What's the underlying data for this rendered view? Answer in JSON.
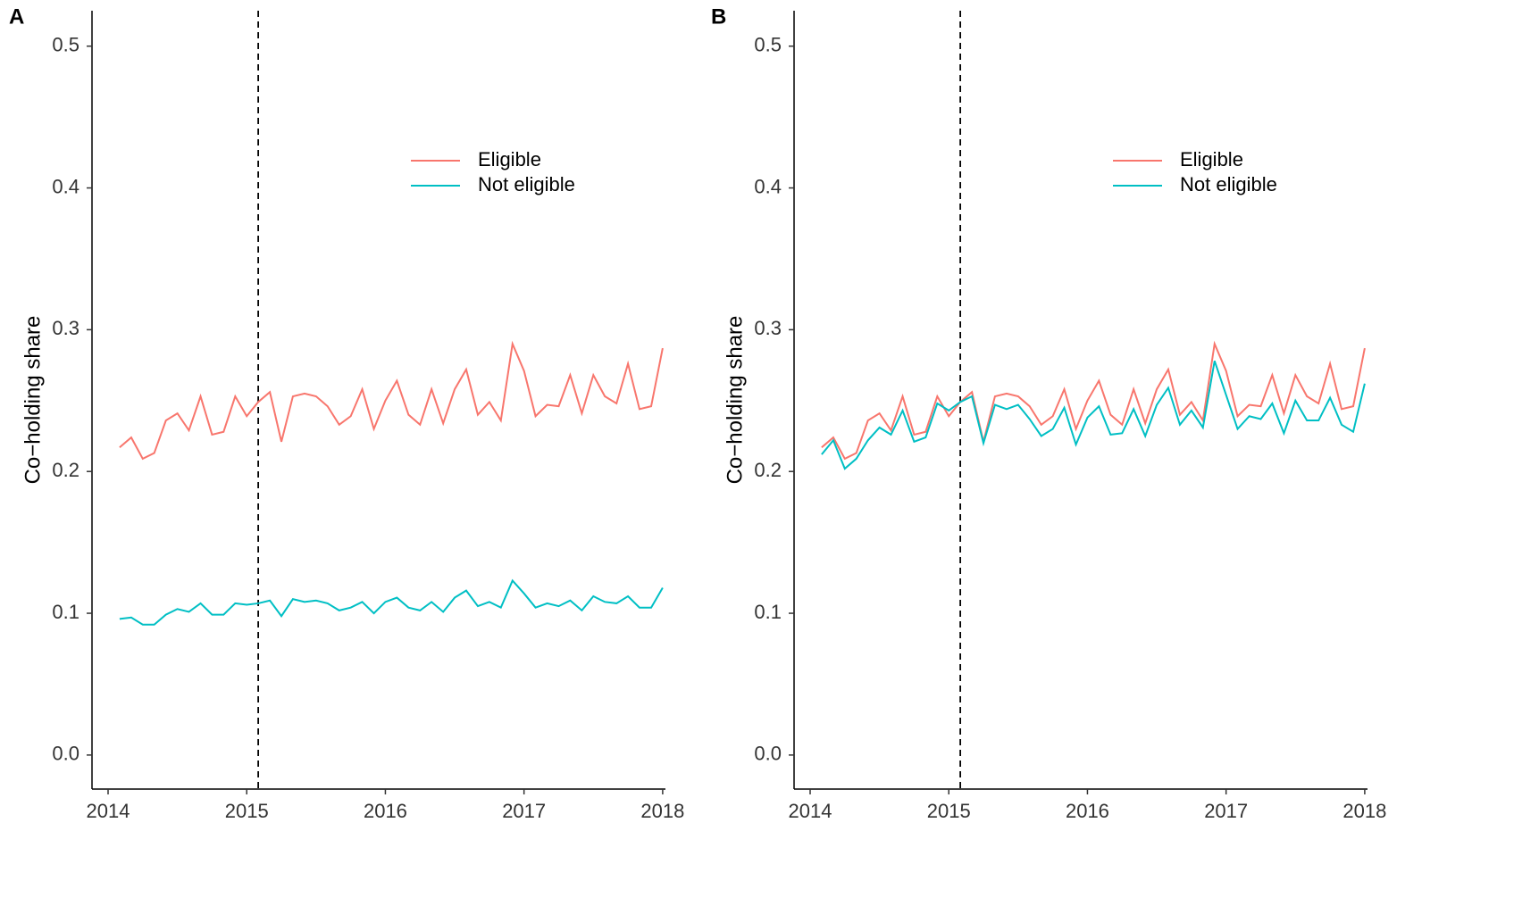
{
  "chart_data": [
    {
      "type": "line",
      "panel_label": "A",
      "y_label": "Co−holding share",
      "x": [
        2014.083,
        2014.167,
        2014.25,
        2014.333,
        2014.417,
        2014.5,
        2014.583,
        2014.667,
        2014.75,
        2014.833,
        2014.917,
        2015.0,
        2015.083,
        2015.167,
        2015.25,
        2015.333,
        2015.417,
        2015.5,
        2015.583,
        2015.667,
        2015.75,
        2015.833,
        2015.917,
        2016.0,
        2016.083,
        2016.167,
        2016.25,
        2016.333,
        2016.417,
        2016.5,
        2016.583,
        2016.667,
        2016.75,
        2016.833,
        2016.917,
        2017.0,
        2017.083,
        2017.167,
        2017.25,
        2017.333,
        2017.417,
        2017.5,
        2017.583,
        2017.667,
        2017.75,
        2017.833,
        2017.917,
        2018.0
      ],
      "series": [
        {
          "name": "Eligible",
          "color": "#F8766D",
          "values": [
            0.217,
            0.224,
            0.209,
            0.213,
            0.236,
            0.241,
            0.229,
            0.253,
            0.226,
            0.228,
            0.253,
            0.239,
            0.249,
            0.256,
            0.221,
            0.253,
            0.255,
            0.253,
            0.246,
            0.233,
            0.239,
            0.258,
            0.23,
            0.25,
            0.264,
            0.24,
            0.233,
            0.258,
            0.234,
            0.258,
            0.272,
            0.24,
            0.249,
            0.236,
            0.29,
            0.271,
            0.239,
            0.247,
            0.246,
            0.268,
            0.241,
            0.268,
            0.253,
            0.248,
            0.276,
            0.244,
            0.246,
            0.287
          ]
        },
        {
          "name": "Not eligible",
          "color": "#00BFC4",
          "values": [
            0.096,
            0.097,
            0.092,
            0.092,
            0.099,
            0.103,
            0.101,
            0.107,
            0.099,
            0.099,
            0.107,
            0.106,
            0.107,
            0.109,
            0.098,
            0.11,
            0.108,
            0.109,
            0.107,
            0.102,
            0.104,
            0.108,
            0.1,
            0.108,
            0.111,
            0.104,
            0.102,
            0.108,
            0.101,
            0.111,
            0.116,
            0.105,
            0.108,
            0.104,
            0.123,
            0.114,
            0.104,
            0.107,
            0.105,
            0.109,
            0.102,
            0.112,
            0.108,
            0.107,
            0.112,
            0.104,
            0.104,
            0.118
          ]
        }
      ],
      "xlim": [
        2013.884,
        2018.02
      ],
      "xticks": [
        2014,
        2015,
        2016,
        2017,
        2018
      ],
      "ylim": [
        -0.024,
        0.525
      ],
      "yticks": [
        {
          "value": 0,
          "label": "0.0"
        },
        0.1,
        0.2,
        0.3,
        0.4,
        0.5
      ],
      "vline": 2015.083,
      "legend": "top-right"
    },
    {
      "type": "line",
      "panel_label": "B",
      "y_label": "Co−holding share",
      "x": [
        2014.083,
        2014.167,
        2014.25,
        2014.333,
        2014.417,
        2014.5,
        2014.583,
        2014.667,
        2014.75,
        2014.833,
        2014.917,
        2015.0,
        2015.083,
        2015.167,
        2015.25,
        2015.333,
        2015.417,
        2015.5,
        2015.583,
        2015.667,
        2015.75,
        2015.833,
        2015.917,
        2016.0,
        2016.083,
        2016.167,
        2016.25,
        2016.333,
        2016.417,
        2016.5,
        2016.583,
        2016.667,
        2016.75,
        2016.833,
        2016.917,
        2017.0,
        2017.083,
        2017.167,
        2017.25,
        2017.333,
        2017.417,
        2017.5,
        2017.583,
        2017.667,
        2017.75,
        2017.833,
        2017.917,
        2018.0
      ],
      "series": [
        {
          "name": "Eligible",
          "color": "#F8766D",
          "values": [
            0.217,
            0.224,
            0.209,
            0.213,
            0.236,
            0.241,
            0.229,
            0.253,
            0.226,
            0.228,
            0.253,
            0.239,
            0.249,
            0.256,
            0.221,
            0.253,
            0.255,
            0.253,
            0.246,
            0.233,
            0.239,
            0.258,
            0.23,
            0.25,
            0.264,
            0.24,
            0.233,
            0.258,
            0.234,
            0.258,
            0.272,
            0.24,
            0.249,
            0.236,
            0.29,
            0.271,
            0.239,
            0.247,
            0.246,
            0.268,
            0.241,
            0.268,
            0.253,
            0.248,
            0.276,
            0.244,
            0.246,
            0.287
          ]
        },
        {
          "name": "Not eligible",
          "color": "#00BFC4",
          "values": [
            0.212,
            0.222,
            0.202,
            0.209,
            0.222,
            0.231,
            0.226,
            0.243,
            0.221,
            0.224,
            0.248,
            0.243,
            0.249,
            0.253,
            0.22,
            0.247,
            0.244,
            0.247,
            0.237,
            0.225,
            0.23,
            0.245,
            0.219,
            0.238,
            0.246,
            0.226,
            0.227,
            0.244,
            0.225,
            0.247,
            0.259,
            0.233,
            0.243,
            0.231,
            0.278,
            0.254,
            0.23,
            0.239,
            0.237,
            0.248,
            0.227,
            0.25,
            0.236,
            0.236,
            0.252,
            0.233,
            0.228,
            0.262
          ]
        }
      ],
      "xlim": [
        2013.884,
        2018.02
      ],
      "xticks": [
        2014,
        2015,
        2016,
        2017,
        2018
      ],
      "ylim": [
        -0.024,
        0.525
      ],
      "yticks": [
        {
          "value": 0,
          "label": "0.0"
        },
        0.1,
        0.2,
        0.3,
        0.4,
        0.5
      ],
      "vline": 2015.083,
      "legend": "top-right"
    }
  ]
}
